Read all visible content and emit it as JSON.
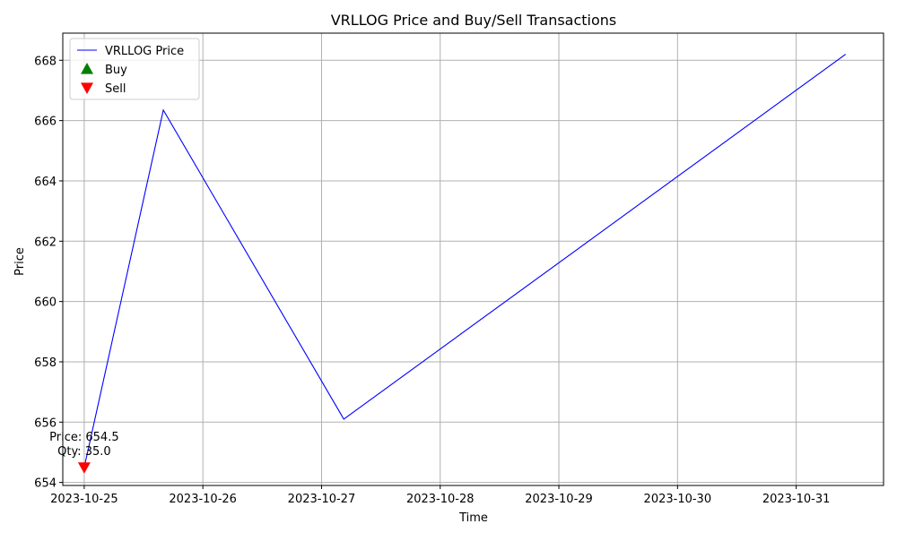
{
  "chart_data": {
    "type": "line",
    "title": "VRLLOG Price and Buy/Sell Transactions",
    "xlabel": "Time",
    "ylabel": "Price",
    "xlim": [
      "2023-10-24 19:40",
      "2023-10-31 17:40"
    ],
    "ylim": [
      653.9,
      668.9
    ],
    "x_ticks": [
      "2023-10-25",
      "2023-10-26",
      "2023-10-27",
      "2023-10-28",
      "2023-10-29",
      "2023-10-30",
      "2023-10-31"
    ],
    "y_ticks": [
      654,
      656,
      658,
      660,
      662,
      664,
      666,
      668
    ],
    "grid": true,
    "legend_position": "top-left",
    "series": [
      {
        "name": "VRLLOG Price",
        "color": "#0000ff",
        "x": [
          "2023-10-25 00:00",
          "2023-10-25 16:00",
          "2023-10-27 04:30",
          "2023-10-31 10:00"
        ],
        "y": [
          654.5,
          666.35,
          656.1,
          668.2
        ]
      }
    ],
    "markers": [
      {
        "name": "Buy",
        "symbol": "triangle-up",
        "color": "#008000",
        "points": []
      },
      {
        "name": "Sell",
        "symbol": "triangle-down",
        "color": "#ff0000",
        "points": [
          {
            "x": "2023-10-25 00:00",
            "y": 654.5
          }
        ]
      }
    ],
    "annotations": [
      {
        "x": "2023-10-25 00:00",
        "y": 654.5,
        "lines": [
          "Price: 654.5",
          "Qty: 35.0"
        ]
      }
    ]
  }
}
